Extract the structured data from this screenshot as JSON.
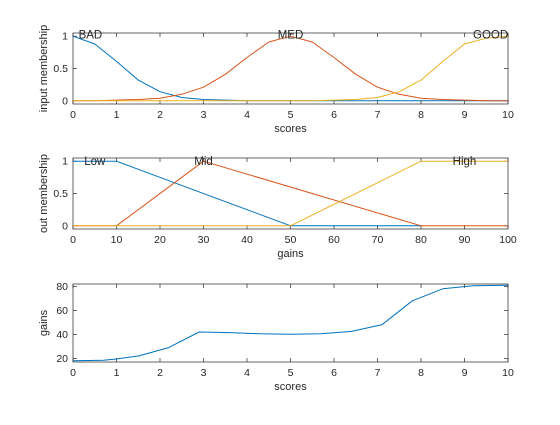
{
  "figure": {
    "background": "#ffffff",
    "axis_color": "#262626"
  },
  "chart_data": [
    {
      "type": "line",
      "xlabel": "scores",
      "ylabel": "input membership",
      "xlim": [
        0,
        10
      ],
      "ylim": [
        -0.05,
        1.05
      ],
      "xticks": [
        0,
        1,
        2,
        3,
        4,
        5,
        6,
        7,
        8,
        9,
        10
      ],
      "yticks": [
        0,
        0.5,
        1
      ],
      "ytick_labels": [
        "0",
        "0.5",
        "1"
      ],
      "grid": false,
      "series": [
        {
          "name": "BAD",
          "color": "#0072BD",
          "label_x": 0.4,
          "label_y": 1.03,
          "x": [
            0,
            0.5,
            1,
            1.5,
            2,
            2.5,
            3,
            3.5,
            4,
            4.5,
            5,
            5.5,
            6,
            6.5,
            7,
            7.5,
            8,
            9,
            10
          ],
          "y": [
            1,
            0.88,
            0.61,
            0.32,
            0.14,
            0.05,
            0.02,
            0.01,
            0,
            0,
            0,
            0,
            0,
            0,
            0,
            0,
            0,
            0,
            0
          ]
        },
        {
          "name": "MED",
          "color": "#D95319",
          "label_x": 5.0,
          "label_y": 1.03,
          "x": [
            0,
            0.5,
            1,
            1.5,
            2,
            2.5,
            3,
            3.5,
            4,
            4.5,
            5,
            5.5,
            6,
            6.5,
            7,
            7.5,
            8,
            8.5,
            9,
            9.5,
            10
          ],
          "y": [
            0,
            0,
            0.01,
            0.02,
            0.04,
            0.1,
            0.21,
            0.41,
            0.67,
            0.91,
            1,
            0.91,
            0.67,
            0.41,
            0.21,
            0.1,
            0.04,
            0.02,
            0.01,
            0,
            0
          ]
        },
        {
          "name": "GOOD",
          "color": "#EDB120",
          "label_x": 9.6,
          "label_y": 1.03,
          "x": [
            0,
            1,
            2,
            3,
            4,
            5,
            5.5,
            6,
            6.5,
            7,
            7.5,
            8,
            8.5,
            9,
            9.5,
            10
          ],
          "y": [
            0,
            0,
            0,
            0,
            0,
            0,
            0,
            0.01,
            0.02,
            0.05,
            0.14,
            0.32,
            0.61,
            0.88,
            0.97,
            1
          ]
        }
      ]
    },
    {
      "type": "line",
      "xlabel": "gains",
      "ylabel": "out membership",
      "xlim": [
        0,
        100
      ],
      "ylim": [
        -0.05,
        1.05
      ],
      "xticks": [
        0,
        10,
        20,
        30,
        40,
        50,
        60,
        70,
        80,
        90,
        100
      ],
      "yticks": [
        0,
        0.5,
        1
      ],
      "ytick_labels": [
        "0",
        "0.5",
        "1"
      ],
      "grid": false,
      "series": [
        {
          "name": "Low",
          "color": "#0072BD",
          "label_x": 5,
          "label_y": 1.0,
          "x": [
            0,
            10,
            50,
            80
          ],
          "y": [
            1,
            1,
            0,
            0
          ]
        },
        {
          "name": "Mid",
          "color": "#D95319",
          "label_x": 30,
          "label_y": 1.0,
          "x": [
            0,
            10,
            30,
            80,
            100
          ],
          "y": [
            0,
            0,
            1,
            0,
            0
          ]
        },
        {
          "name": "High",
          "color": "#EDB120",
          "label_x": 90,
          "label_y": 1.0,
          "x": [
            0,
            50,
            80,
            100
          ],
          "y": [
            0,
            0,
            1,
            1
          ]
        }
      ]
    },
    {
      "type": "line",
      "xlabel": "scores",
      "ylabel": "gains",
      "xlim": [
        0,
        10
      ],
      "ylim": [
        17,
        82
      ],
      "xticks": [
        0,
        1,
        2,
        3,
        4,
        5,
        6,
        7,
        8,
        9,
        10
      ],
      "yticks": [
        20,
        40,
        60,
        80
      ],
      "ytick_labels": [
        "20",
        "40",
        "60",
        "80"
      ],
      "grid": false,
      "series": [
        {
          "color": "#0072BD",
          "x": [
            0,
            0.7,
            1,
            1.5,
            2.2,
            2.9,
            3.6,
            4.3,
            5,
            5.7,
            6.4,
            7.1,
            7.8,
            8.5,
            9.2,
            10
          ],
          "y": [
            18,
            18.5,
            19.5,
            22,
            29,
            42,
            41.5,
            40.5,
            40.2,
            40.5,
            42.5,
            48,
            68,
            78,
            80.5,
            81
          ]
        }
      ]
    }
  ]
}
